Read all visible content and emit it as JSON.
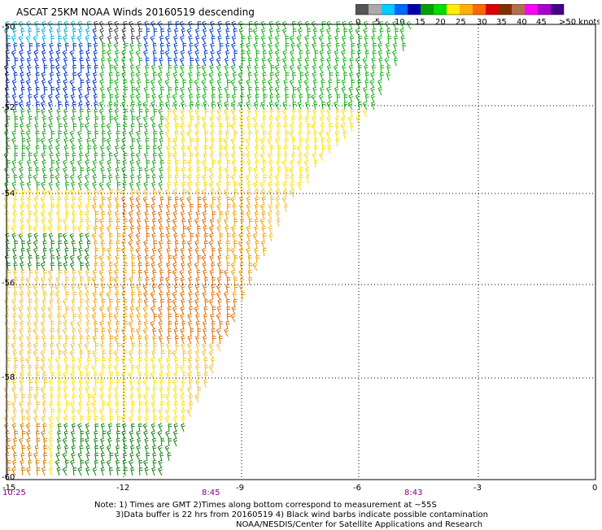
{
  "title": "ASCAT 25KM NOAA Winds 20160519 descending",
  "colorbar": {
    "colors": [
      "#555555",
      "#aaaaaa",
      "#00ccff",
      "#0066ff",
      "#0000aa",
      "#00a000",
      "#00dd00",
      "#ffee00",
      "#ffb000",
      "#ff6600",
      "#dd0000",
      "#803000",
      "#b07050",
      "#ff00ff",
      "#aa00cc",
      "#440088"
    ],
    "labels": [
      "0",
      "5",
      "10",
      "15",
      "20",
      "25",
      "30",
      "35",
      "40",
      "45",
      ">50 knots"
    ]
  },
  "axes": {
    "lon_ticks": [
      "-15",
      "-12",
      "-9",
      "-6",
      "-3",
      "0"
    ],
    "lat_ticks": [
      "-50",
      "-52",
      "-54",
      "-56",
      "-58",
      "-60"
    ]
  },
  "times": [
    "10:25",
    "8:45",
    "8:43"
  ],
  "notes": [
    "Note: 1) Times are GMT 2)Times along bottom correspond to measurement at ~55S",
    "3)Data buffer is 22 hrs from 20160519 4) Black wind barbs indicate possible contamination",
    "NOAA/NESDIS/Center for Satellite Applications and Research"
  ]
}
